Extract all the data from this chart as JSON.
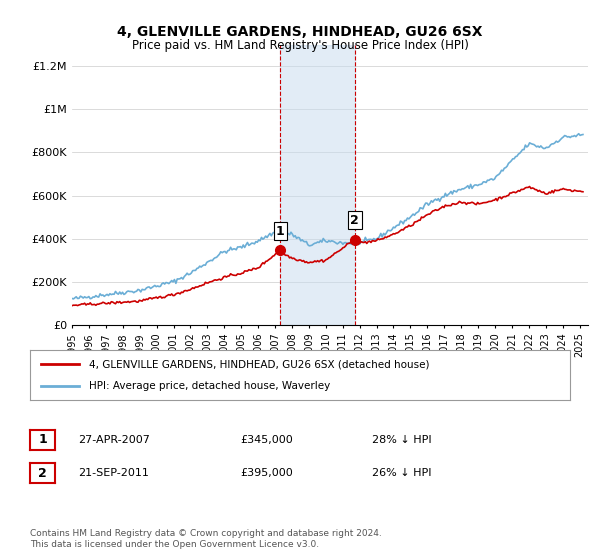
{
  "title": "4, GLENVILLE GARDENS, HINDHEAD, GU26 6SX",
  "subtitle": "Price paid vs. HM Land Registry's House Price Index (HPI)",
  "ylabel_ticks": [
    "£0",
    "£200K",
    "£400K",
    "£600K",
    "£800K",
    "£1M",
    "£1.2M"
  ],
  "ytick_values": [
    0,
    200000,
    400000,
    600000,
    800000,
    1000000,
    1200000
  ],
  "ylim": [
    0,
    1300000
  ],
  "xlim_start": 1995.0,
  "xlim_end": 2025.5,
  "hpi_color": "#6baed6",
  "price_color": "#cc0000",
  "sale1_x": 2007.32,
  "sale1_y": 345000,
  "sale2_x": 2011.72,
  "sale2_y": 395000,
  "shade_color": "#c6dbef",
  "legend_label1": "4, GLENVILLE GARDENS, HINDHEAD, GU26 6SX (detached house)",
  "legend_label2": "HPI: Average price, detached house, Waverley",
  "table_row1_num": "1",
  "table_row1_date": "27-APR-2007",
  "table_row1_price": "£345,000",
  "table_row1_hpi": "28% ↓ HPI",
  "table_row2_num": "2",
  "table_row2_date": "21-SEP-2011",
  "table_row2_price": "£395,000",
  "table_row2_hpi": "26% ↓ HPI",
  "footnote": "Contains HM Land Registry data © Crown copyright and database right 2024.\nThis data is licensed under the Open Government Licence v3.0.",
  "background_color": "#ffffff",
  "grid_color": "#cccccc"
}
